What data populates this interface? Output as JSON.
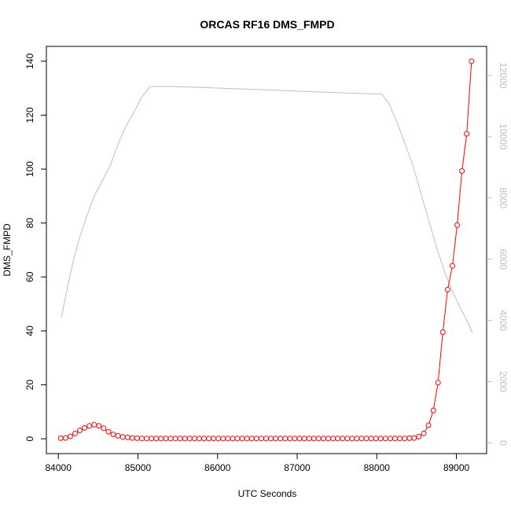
{
  "chart_data": {
    "type": "line",
    "title": "ORCAS RF16 DMS_FMPD",
    "xlabel": "UTC Seconds",
    "ylabel": "DMS_FMPD",
    "xlim": [
      83850,
      89380
    ],
    "ylim": [
      -5.5,
      145.5
    ],
    "x_ticks": [
      84000,
      85000,
      86000,
      87000,
      88000,
      89000
    ],
    "y_ticks": [
      0,
      20,
      40,
      60,
      80,
      100,
      120,
      140
    ],
    "y2lim": [
      -350,
      12950
    ],
    "y2_ticks": [
      0,
      2000,
      4000,
      6000,
      8000,
      10000,
      12000
    ],
    "colors": {
      "series": "#ff0000",
      "secondary": "#bebebe",
      "axis": "#000000"
    },
    "series": [
      {
        "marker": "open-circle",
        "line": true,
        "x": [
          84030,
          84090,
          84150,
          84210,
          84270,
          84330,
          84390,
          84450,
          84510,
          84570,
          84630,
          84690,
          84750,
          84810,
          84870,
          84930,
          84990,
          85050,
          85110,
          85170,
          85230,
          85290,
          85350,
          85410,
          85470,
          85530,
          85590,
          85650,
          85710,
          85770,
          85830,
          85890,
          85950,
          86010,
          86070,
          86130,
          86190,
          86250,
          86310,
          86370,
          86430,
          86490,
          86550,
          86610,
          86670,
          86730,
          86790,
          86850,
          86910,
          86970,
          87030,
          87090,
          87150,
          87210,
          87270,
          87330,
          87390,
          87450,
          87510,
          87570,
          87630,
          87690,
          87750,
          87810,
          87870,
          87930,
          87990,
          88050,
          88110,
          88170,
          88230,
          88290,
          88350,
          88410,
          88470,
          88530,
          88590,
          88650,
          88710,
          88770,
          88830,
          88890,
          88950,
          89010,
          89070,
          89130,
          89190
        ],
        "y": [
          0.2,
          0.3,
          0.9,
          2.0,
          3.1,
          4.0,
          4.8,
          5.2,
          4.8,
          3.9,
          2.6,
          1.6,
          1.1,
          0.7,
          0.5,
          0.3,
          0.2,
          0.1,
          0.1,
          0.1,
          0.1,
          0.1,
          0.1,
          0.1,
          0.1,
          0.1,
          0.1,
          0.1,
          0.1,
          0.1,
          0.1,
          0.1,
          0.1,
          0.1,
          0.1,
          0.1,
          0.1,
          0.1,
          0.1,
          0.1,
          0.1,
          0.1,
          0.1,
          0.1,
          0.1,
          0.1,
          0.1,
          0.1,
          0.1,
          0.1,
          0.1,
          0.1,
          0.1,
          0.1,
          0.1,
          0.1,
          0.1,
          0.1,
          0.1,
          0.1,
          0.1,
          0.1,
          0.1,
          0.1,
          0.1,
          0.1,
          0.1,
          0.1,
          0.1,
          0.1,
          0.1,
          0.1,
          0.1,
          0.2,
          0.3,
          0.8,
          2.0,
          5.0,
          10.5,
          20.8,
          39.5,
          55.3,
          64.1,
          79.2,
          99.3,
          113.1,
          140.0
        ]
      },
      {
        "axis": "right",
        "line": true,
        "marker": "none",
        "x": [
          84040,
          84100,
          84180,
          84260,
          84350,
          84450,
          84550,
          84650,
          84750,
          84850,
          84950,
          85050,
          85150,
          85200,
          85400,
          85800,
          86200,
          86600,
          87000,
          87400,
          87800,
          88000,
          88060,
          88150,
          88250,
          88350,
          88450,
          88550,
          88650,
          88750,
          88850,
          88950,
          89050,
          89150,
          89200
        ],
        "y": [
          4100,
          4900,
          5850,
          6650,
          7350,
          8050,
          8550,
          9050,
          9750,
          10350,
          10800,
          11300,
          11630,
          11640,
          11640,
          11610,
          11570,
          11530,
          11490,
          11450,
          11410,
          11400,
          11400,
          11100,
          10500,
          9800,
          9100,
          8200,
          7300,
          6400,
          5600,
          4950,
          4400,
          3900,
          3600
        ]
      }
    ]
  }
}
